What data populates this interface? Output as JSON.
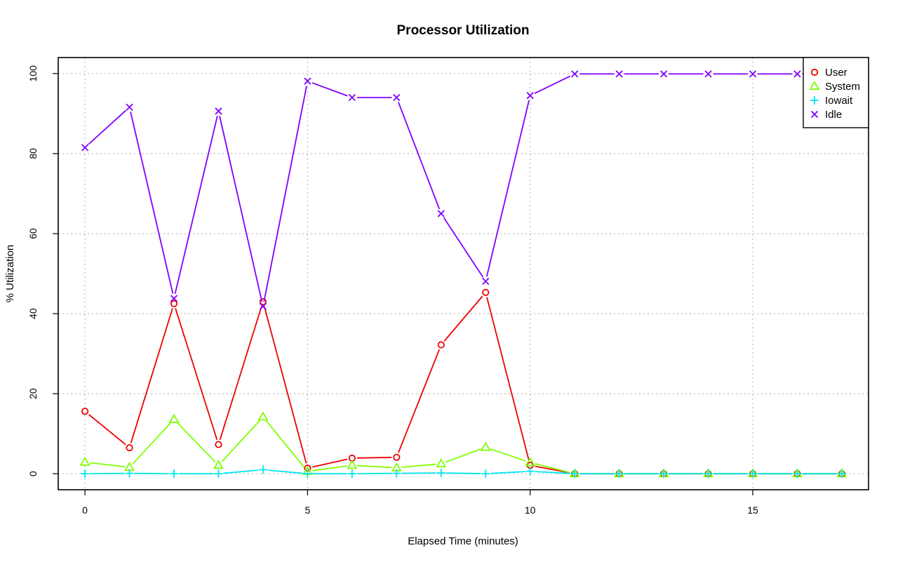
{
  "chart_data": {
    "type": "line",
    "title": "Processor Utilization",
    "xlabel": "Elapsed Time (minutes)",
    "ylabel": "% Utilization",
    "xlim": [
      -0.6,
      17.6
    ],
    "ylim": [
      -4,
      104
    ],
    "x_ticks": [
      0,
      5,
      10,
      15
    ],
    "y_ticks": [
      0,
      20,
      40,
      60,
      80,
      100
    ],
    "grid": true,
    "legend_position": "top-right",
    "x": [
      0,
      1,
      2,
      3,
      4,
      5,
      6,
      7,
      8,
      9,
      10,
      11,
      12,
      13,
      14,
      15,
      16,
      17
    ],
    "series": [
      {
        "name": "User",
        "color": "#ee0000",
        "marker": "circle",
        "values": [
          15.6,
          6.5,
          42.5,
          7.3,
          43.0,
          1.4,
          3.9,
          4.1,
          32.2,
          45.3,
          2.1,
          0,
          0,
          0,
          0,
          0,
          0,
          0
        ]
      },
      {
        "name": "System",
        "color": "#7fff00",
        "marker": "triangle",
        "values": [
          2.9,
          1.6,
          13.6,
          2.1,
          14.2,
          0.6,
          2.1,
          1.5,
          2.5,
          6.6,
          2.8,
          0,
          0,
          0,
          0,
          0,
          0,
          0
        ]
      },
      {
        "name": "Iowait",
        "color": "#00e5ee",
        "marker": "plus",
        "values": [
          0,
          0.1,
          0,
          0,
          1.0,
          0,
          0,
          0.1,
          0.2,
          0,
          0.6,
          0,
          0,
          0,
          0,
          0,
          0,
          0
        ]
      },
      {
        "name": "Idle",
        "color": "#8000ff",
        "marker": "cross",
        "values": [
          81.5,
          91.6,
          43.8,
          90.6,
          41.8,
          98.1,
          94.0,
          94.0,
          65.0,
          48.1,
          94.5,
          99.9,
          99.9,
          99.9,
          99.9,
          99.9,
          99.9,
          99.9
        ]
      }
    ]
  }
}
